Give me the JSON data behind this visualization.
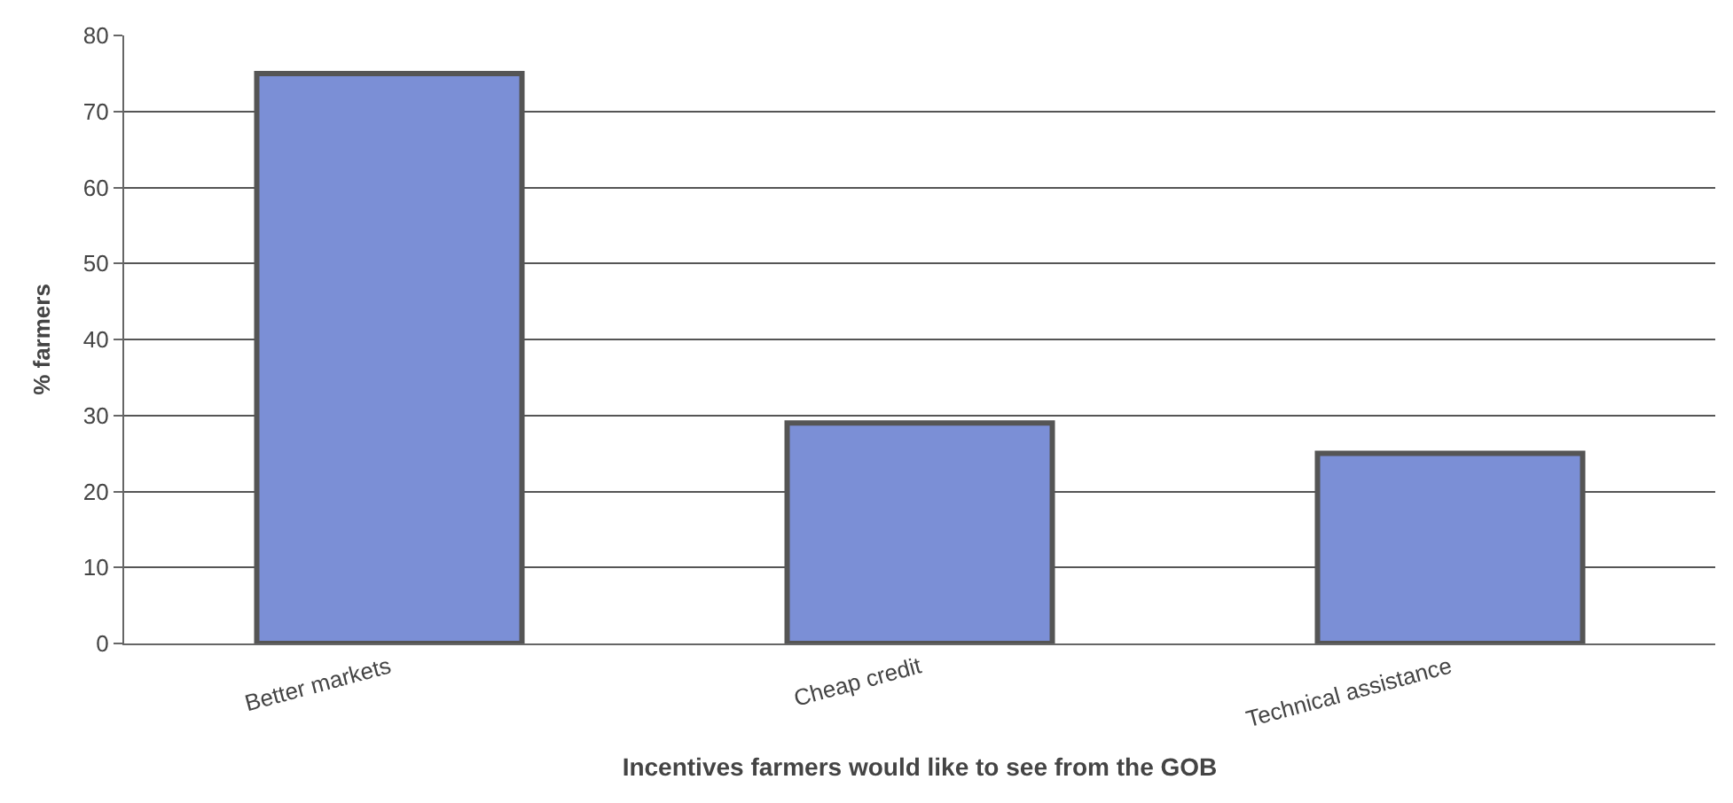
{
  "chart_data": {
    "type": "bar",
    "xlabel": "Incentives farmers would like to see from the GOB",
    "ylabel": "% farmers",
    "categories": [
      "Better markets",
      "Cheap credit",
      "Technical assistance"
    ],
    "values": [
      75,
      29,
      25
    ],
    "color": "#7b8fd6",
    "ylim": [
      0,
      80
    ],
    "yticks": [
      0,
      10,
      20,
      30,
      40,
      50,
      60,
      70,
      80
    ],
    "grid": "y",
    "legend": false
  }
}
